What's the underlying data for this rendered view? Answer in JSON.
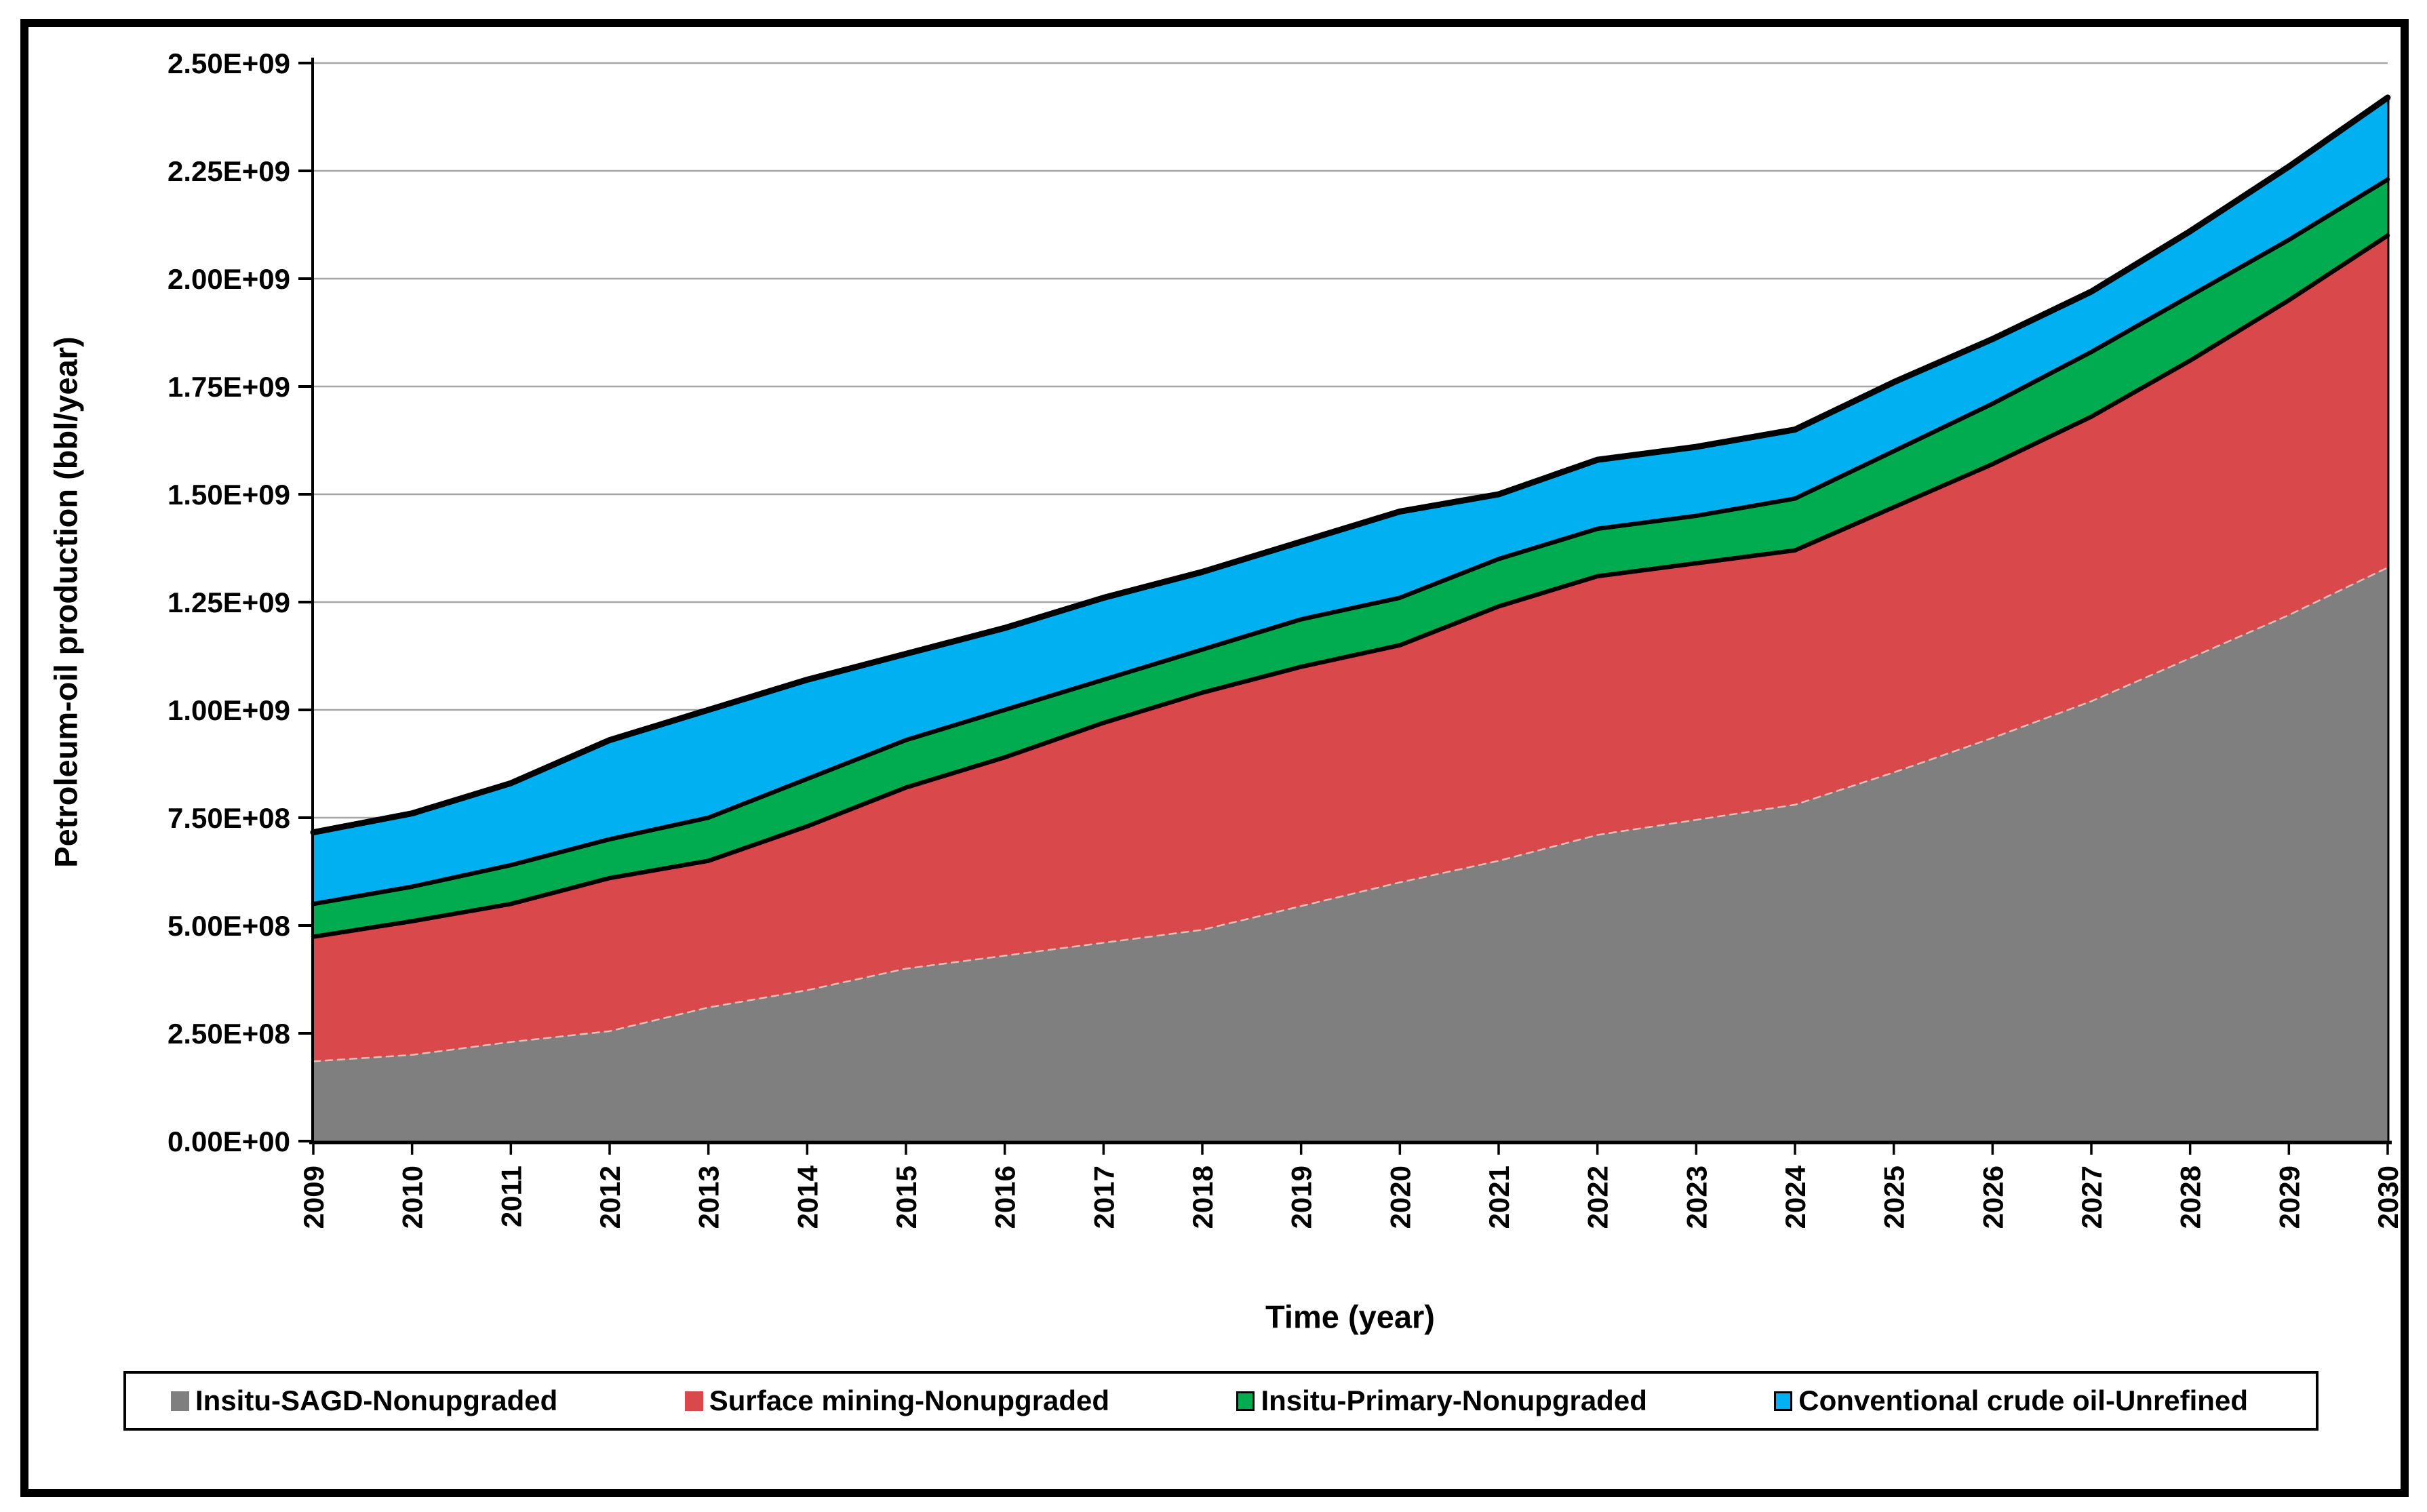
{
  "figure": {
    "background": "#ffffff",
    "frame_color": "#000000"
  },
  "chart_data": {
    "type": "area",
    "stacked": true,
    "title": "",
    "xlabel": "Time (year)",
    "ylabel": "Petroleum-oil production (bbl/year)",
    "x": [
      2009,
      2010,
      2011,
      2012,
      2013,
      2014,
      2015,
      2016,
      2017,
      2018,
      2019,
      2020,
      2021,
      2022,
      2023,
      2024,
      2025,
      2026,
      2027,
      2028,
      2029,
      2030
    ],
    "xlim": [
      2009,
      2030
    ],
    "ylim": [
      0,
      2500000000.0
    ],
    "ytick_values": [
      0,
      250000000.0,
      500000000.0,
      750000000.0,
      1000000000.0,
      1250000000.0,
      1500000000.0,
      1750000000.0,
      2000000000.0,
      2250000000.0,
      2500000000.0
    ],
    "ytick_labels": [
      "0.00E+00",
      "2.50E+08",
      "5.00E+08",
      "7.50E+08",
      "1.00E+09",
      "1.25E+09",
      "1.50E+09",
      "1.75E+09",
      "2.00E+09",
      "2.25E+09",
      "2.50E+09"
    ],
    "grid": true,
    "gridline_color": "#a6a6a6",
    "axis_color": "#000000",
    "boundary_line_color": "#000000",
    "legend_position": "bottom",
    "series": [
      {
        "name": "Insitu-SAGD-Nonupgraded",
        "color": "#7f7f7f",
        "outlined": false,
        "top_boundary_style": "dashed-light",
        "values": [
          185000000.0,
          200000000.0,
          230000000.0,
          255000000.0,
          310000000.0,
          350000000.0,
          400000000.0,
          430000000.0,
          460000000.0,
          490000000.0,
          545000000.0,
          600000000.0,
          650000000.0,
          710000000.0,
          745000000.0,
          780000000.0,
          855000000.0,
          935000000.0,
          1020000000.0,
          1120000000.0,
          1220000000.0,
          1330000000.0
        ]
      },
      {
        "name": "Surface mining-Nonupgraded",
        "color": "#d9494c",
        "outlined": false,
        "top_boundary_style": "solid-black",
        "values": [
          289000000.0,
          310000000.0,
          320000000.0,
          355000000.0,
          340000000.0,
          380000000.0,
          420000000.0,
          460000000.0,
          510000000.0,
          550000000.0,
          555000000.0,
          550000000.0,
          590000000.0,
          600000000.0,
          595000000.0,
          590000000.0,
          615000000.0,
          635000000.0,
          660000000.0,
          690000000.0,
          730000000.0,
          770000000.0
        ]
      },
      {
        "name": "Insitu-Primary-Nonupgraded",
        "color": "#00ac4f",
        "outlined": true,
        "top_boundary_style": "solid-black",
        "values": [
          76000000.0,
          80000000.0,
          90000000.0,
          90000000.0,
          100000000.0,
          110000000.0,
          110000000.0,
          110000000.0,
          100000000.0,
          100000000.0,
          110000000.0,
          110000000.0,
          110000000.0,
          110000000.0,
          110000000.0,
          120000000.0,
          130000000.0,
          140000000.0,
          150000000.0,
          150000000.0,
          140000000.0,
          130000000.0
        ]
      },
      {
        "name": "Conventional crude oil-Unrefined",
        "color": "#00b0f0",
        "outlined": true,
        "top_boundary_style": "solid-black",
        "values": [
          166000000.0,
          170000000.0,
          190000000.0,
          230000000.0,
          250000000.0,
          230000000.0,
          200000000.0,
          190000000.0,
          190000000.0,
          180000000.0,
          180000000.0,
          200000000.0,
          150000000.0,
          160000000.0,
          160000000.0,
          160000000.0,
          160000000.0,
          150000000.0,
          140000000.0,
          150000000.0,
          170000000.0,
          190000000.0
        ]
      }
    ]
  },
  "axes": {
    "y_title": "Petroleum-oil production (bbl/year)",
    "x_title": "Time (year)"
  },
  "legend": {
    "items": [
      {
        "label": "Insitu-SAGD-Nonupgraded",
        "color": "#7f7f7f",
        "outlined": false
      },
      {
        "label": "Surface mining-Nonupgraded",
        "color": "#d9494c",
        "outlined": false
      },
      {
        "label": "Insitu-Primary-Nonupgraded",
        "color": "#00ac4f",
        "outlined": true
      },
      {
        "label": "Conventional crude oil-Unrefined",
        "color": "#00b0f0",
        "outlined": true
      }
    ]
  }
}
